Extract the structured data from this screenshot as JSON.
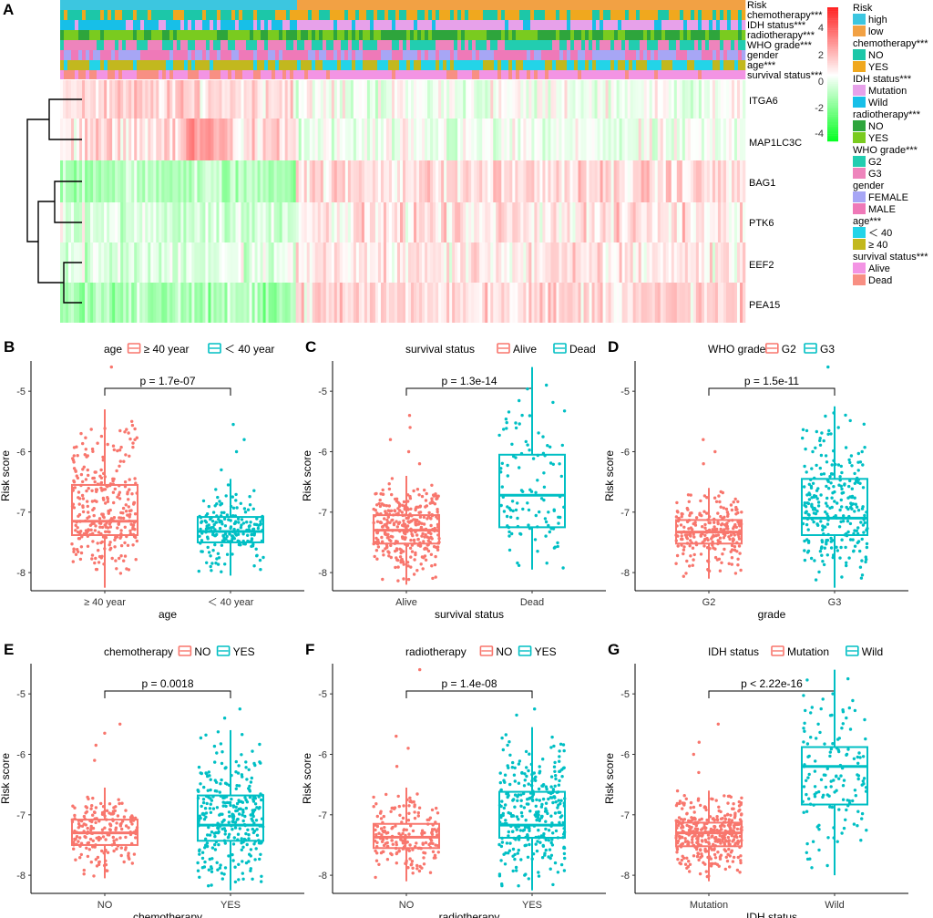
{
  "colors": {
    "high": "#3CC6E0",
    "low": "#F2A144",
    "chemo_no": "#1CC7A8",
    "chemo_yes": "#F0A81E",
    "idh_mut": "#E7A1EA",
    "idh_wild": "#17BFE8",
    "radio_no": "#2EA53C",
    "radio_yes": "#7ACB1F",
    "who_g2": "#22CDB0",
    "who_g3": "#EE84BC",
    "sex_f": "#A7A6F5",
    "sex_m": "#EF79B8",
    "age_lt": "#23D4E8",
    "age_ge": "#C2B81E",
    "surv_alive": "#F394E4",
    "surv_dead": "#F88F83",
    "box_a": "#F8766D",
    "box_b": "#00BFC4"
  },
  "heatmap": {
    "panel_label": "A",
    "annotation_tracks": [
      "Risk",
      "chemotherapy***",
      "IDH status***",
      "radiotherapy***",
      "WHO grade***",
      "gender",
      "age***",
      "survival status***"
    ],
    "genes": [
      "ITGA6",
      "MAP1LC3C",
      "BAG1",
      "PTK6",
      "EEF2",
      "PEA15"
    ],
    "colorbar_ticks": [
      "4",
      "2",
      "0",
      "-2",
      "-4"
    ],
    "legend": [
      {
        "title": "Risk",
        "items": [
          {
            "label": "high",
            "color": "#3CC6E0"
          },
          {
            "label": "low",
            "color": "#F2A144"
          }
        ]
      },
      {
        "title": "chemotherapy***",
        "items": [
          {
            "label": "NO",
            "color": "#1CC7A8"
          },
          {
            "label": "YES",
            "color": "#F0A81E"
          }
        ]
      },
      {
        "title": "IDH status***",
        "items": [
          {
            "label": "Mutation",
            "color": "#E7A1EA"
          },
          {
            "label": "Wild",
            "color": "#17BFE8"
          }
        ]
      },
      {
        "title": "radiotherapy***",
        "items": [
          {
            "label": "NO",
            "color": "#2EA53C"
          },
          {
            "label": "YES",
            "color": "#7ACB1F"
          }
        ]
      },
      {
        "title": "WHO grade***",
        "items": [
          {
            "label": "G2",
            "color": "#22CDB0"
          },
          {
            "label": "G3",
            "color": "#EE84BC"
          }
        ]
      },
      {
        "title": "gender",
        "items": [
          {
            "label": "FEMALE",
            "color": "#A7A6F5"
          },
          {
            "label": "MALE",
            "color": "#EF79B8"
          }
        ]
      },
      {
        "title": "age***",
        "items": [
          {
            "label": "＜ 40",
            "color": "#23D4E8"
          },
          {
            "label": "≥ 40",
            "color": "#C2B81E"
          }
        ]
      },
      {
        "title": "survival status***",
        "items": [
          {
            "label": "Alive",
            "color": "#F394E4"
          },
          {
            "label": "Dead",
            "color": "#F88F83"
          }
        ]
      }
    ]
  },
  "chart_data": [
    {
      "type": "box",
      "panel": "B",
      "legend_title": "age",
      "categories": [
        "≥ 40 year",
        "＜ 40 year"
      ],
      "xlabel": "age",
      "ylabel": "Risk score",
      "pvalue": "p = 1.7e-07",
      "ylim": [
        -8.3,
        -4.5
      ],
      "yticks": [
        "-5",
        "-6",
        "-7",
        "-8"
      ],
      "boxes": [
        {
          "min": -8.25,
          "q1": -7.38,
          "median": -7.15,
          "q3": -6.55,
          "max": -5.3,
          "outlier": -4.6,
          "n": 300
        },
        {
          "min": -8.05,
          "q1": -7.5,
          "median": -7.32,
          "q3": -7.08,
          "max": -6.45,
          "outliers": [
            -5.55,
            -5.8,
            -6.0,
            -6.3
          ],
          "n": 190
        }
      ]
    },
    {
      "type": "box",
      "panel": "C",
      "legend_title": "survival status",
      "categories": [
        "Alive",
        "Dead"
      ],
      "xlabel": "survival status",
      "ylabel": "Risk score",
      "pvalue": "p = 1.3e-14",
      "ylim": [
        -8.3,
        -4.5
      ],
      "yticks": [
        "-5",
        "-6",
        "-7",
        "-8"
      ],
      "boxes": [
        {
          "min": -8.2,
          "q1": -7.52,
          "median": -7.3,
          "q3": -7.05,
          "max": -6.4,
          "outliers": [
            -5.4,
            -5.6,
            -5.8,
            -6.0,
            -6.2
          ],
          "n": 330
        },
        {
          "min": -7.95,
          "q1": -7.25,
          "median": -6.72,
          "q3": -6.05,
          "max": -4.6,
          "n": 110
        }
      ]
    },
    {
      "type": "box",
      "panel": "D",
      "legend_title": "WHO grade",
      "categories": [
        "G2",
        "G3"
      ],
      "xlabel": "grade",
      "ylabel": "Risk score",
      "pvalue": "p = 1.5e-11",
      "ylim": [
        -8.3,
        -4.5
      ],
      "yticks": [
        "-5",
        "-6",
        "-7",
        "-8"
      ],
      "boxes": [
        {
          "min": -8.1,
          "q1": -7.52,
          "median": -7.33,
          "q3": -7.13,
          "max": -6.6,
          "outliers": [
            -5.8,
            -6.0,
            -6.2
          ],
          "n": 230
        },
        {
          "min": -8.25,
          "q1": -7.38,
          "median": -7.1,
          "q3": -6.45,
          "max": -5.25,
          "outlier": -4.6,
          "n": 260
        }
      ]
    },
    {
      "type": "box",
      "panel": "E",
      "legend_title": "chemotherapy",
      "categories": [
        "NO",
        "YES"
      ],
      "xlabel": "chemotherapy",
      "ylabel": "Risk score",
      "pvalue": "p =  0.0018",
      "ylim": [
        -8.3,
        -4.5
      ],
      "yticks": [
        "-5",
        "-6",
        "-7",
        "-8"
      ],
      "boxes": [
        {
          "min": -8.05,
          "q1": -7.5,
          "median": -7.3,
          "q3": -7.08,
          "max": -6.55,
          "outliers": [
            -5.5,
            -5.65,
            -5.85,
            -6.1
          ],
          "n": 190
        },
        {
          "min": -8.25,
          "q1": -7.43,
          "median": -7.17,
          "q3": -6.68,
          "max": -5.6,
          "outliers": [
            -5.25,
            -5.4
          ],
          "n": 300
        }
      ]
    },
    {
      "type": "box",
      "panel": "F",
      "legend_title": "radiotherapy",
      "categories": [
        "NO",
        "YES"
      ],
      "xlabel": "radiotherapy",
      "ylabel": "Risk score",
      "pvalue": "p = 1.4e-08",
      "ylim": [
        -8.3,
        -4.5
      ],
      "yticks": [
        "-5",
        "-6",
        "-7",
        "-8"
      ],
      "boxes": [
        {
          "min": -8.1,
          "q1": -7.55,
          "median": -7.37,
          "q3": -7.15,
          "max": -6.55,
          "outliers": [
            -4.6,
            -5.7,
            -5.9,
            -6.2
          ],
          "n": 180
        },
        {
          "min": -8.25,
          "q1": -7.38,
          "median": -7.17,
          "q3": -6.62,
          "max": -5.55,
          "outliers": [
            -5.25,
            -5.35
          ],
          "n": 310
        }
      ]
    },
    {
      "type": "box",
      "panel": "G",
      "legend_title": "IDH status",
      "categories": [
        "Mutation",
        "Wild"
      ],
      "xlabel": "IDH status",
      "ylabel": "Risk score",
      "pvalue": "p < 2.22e-16",
      "ylim": [
        -8.3,
        -4.5
      ],
      "yticks": [
        "-5",
        "-6",
        "-7",
        "-8"
      ],
      "boxes": [
        {
          "min": -8.1,
          "q1": -7.52,
          "median": -7.3,
          "q3": -7.13,
          "max": -6.6,
          "outliers": [
            -5.5,
            -5.8,
            -6.0,
            -6.3
          ],
          "n": 360
        },
        {
          "min": -8.0,
          "q1": -6.83,
          "median": -6.2,
          "q3": -5.88,
          "max": -4.6,
          "n": 140
        }
      ]
    }
  ]
}
